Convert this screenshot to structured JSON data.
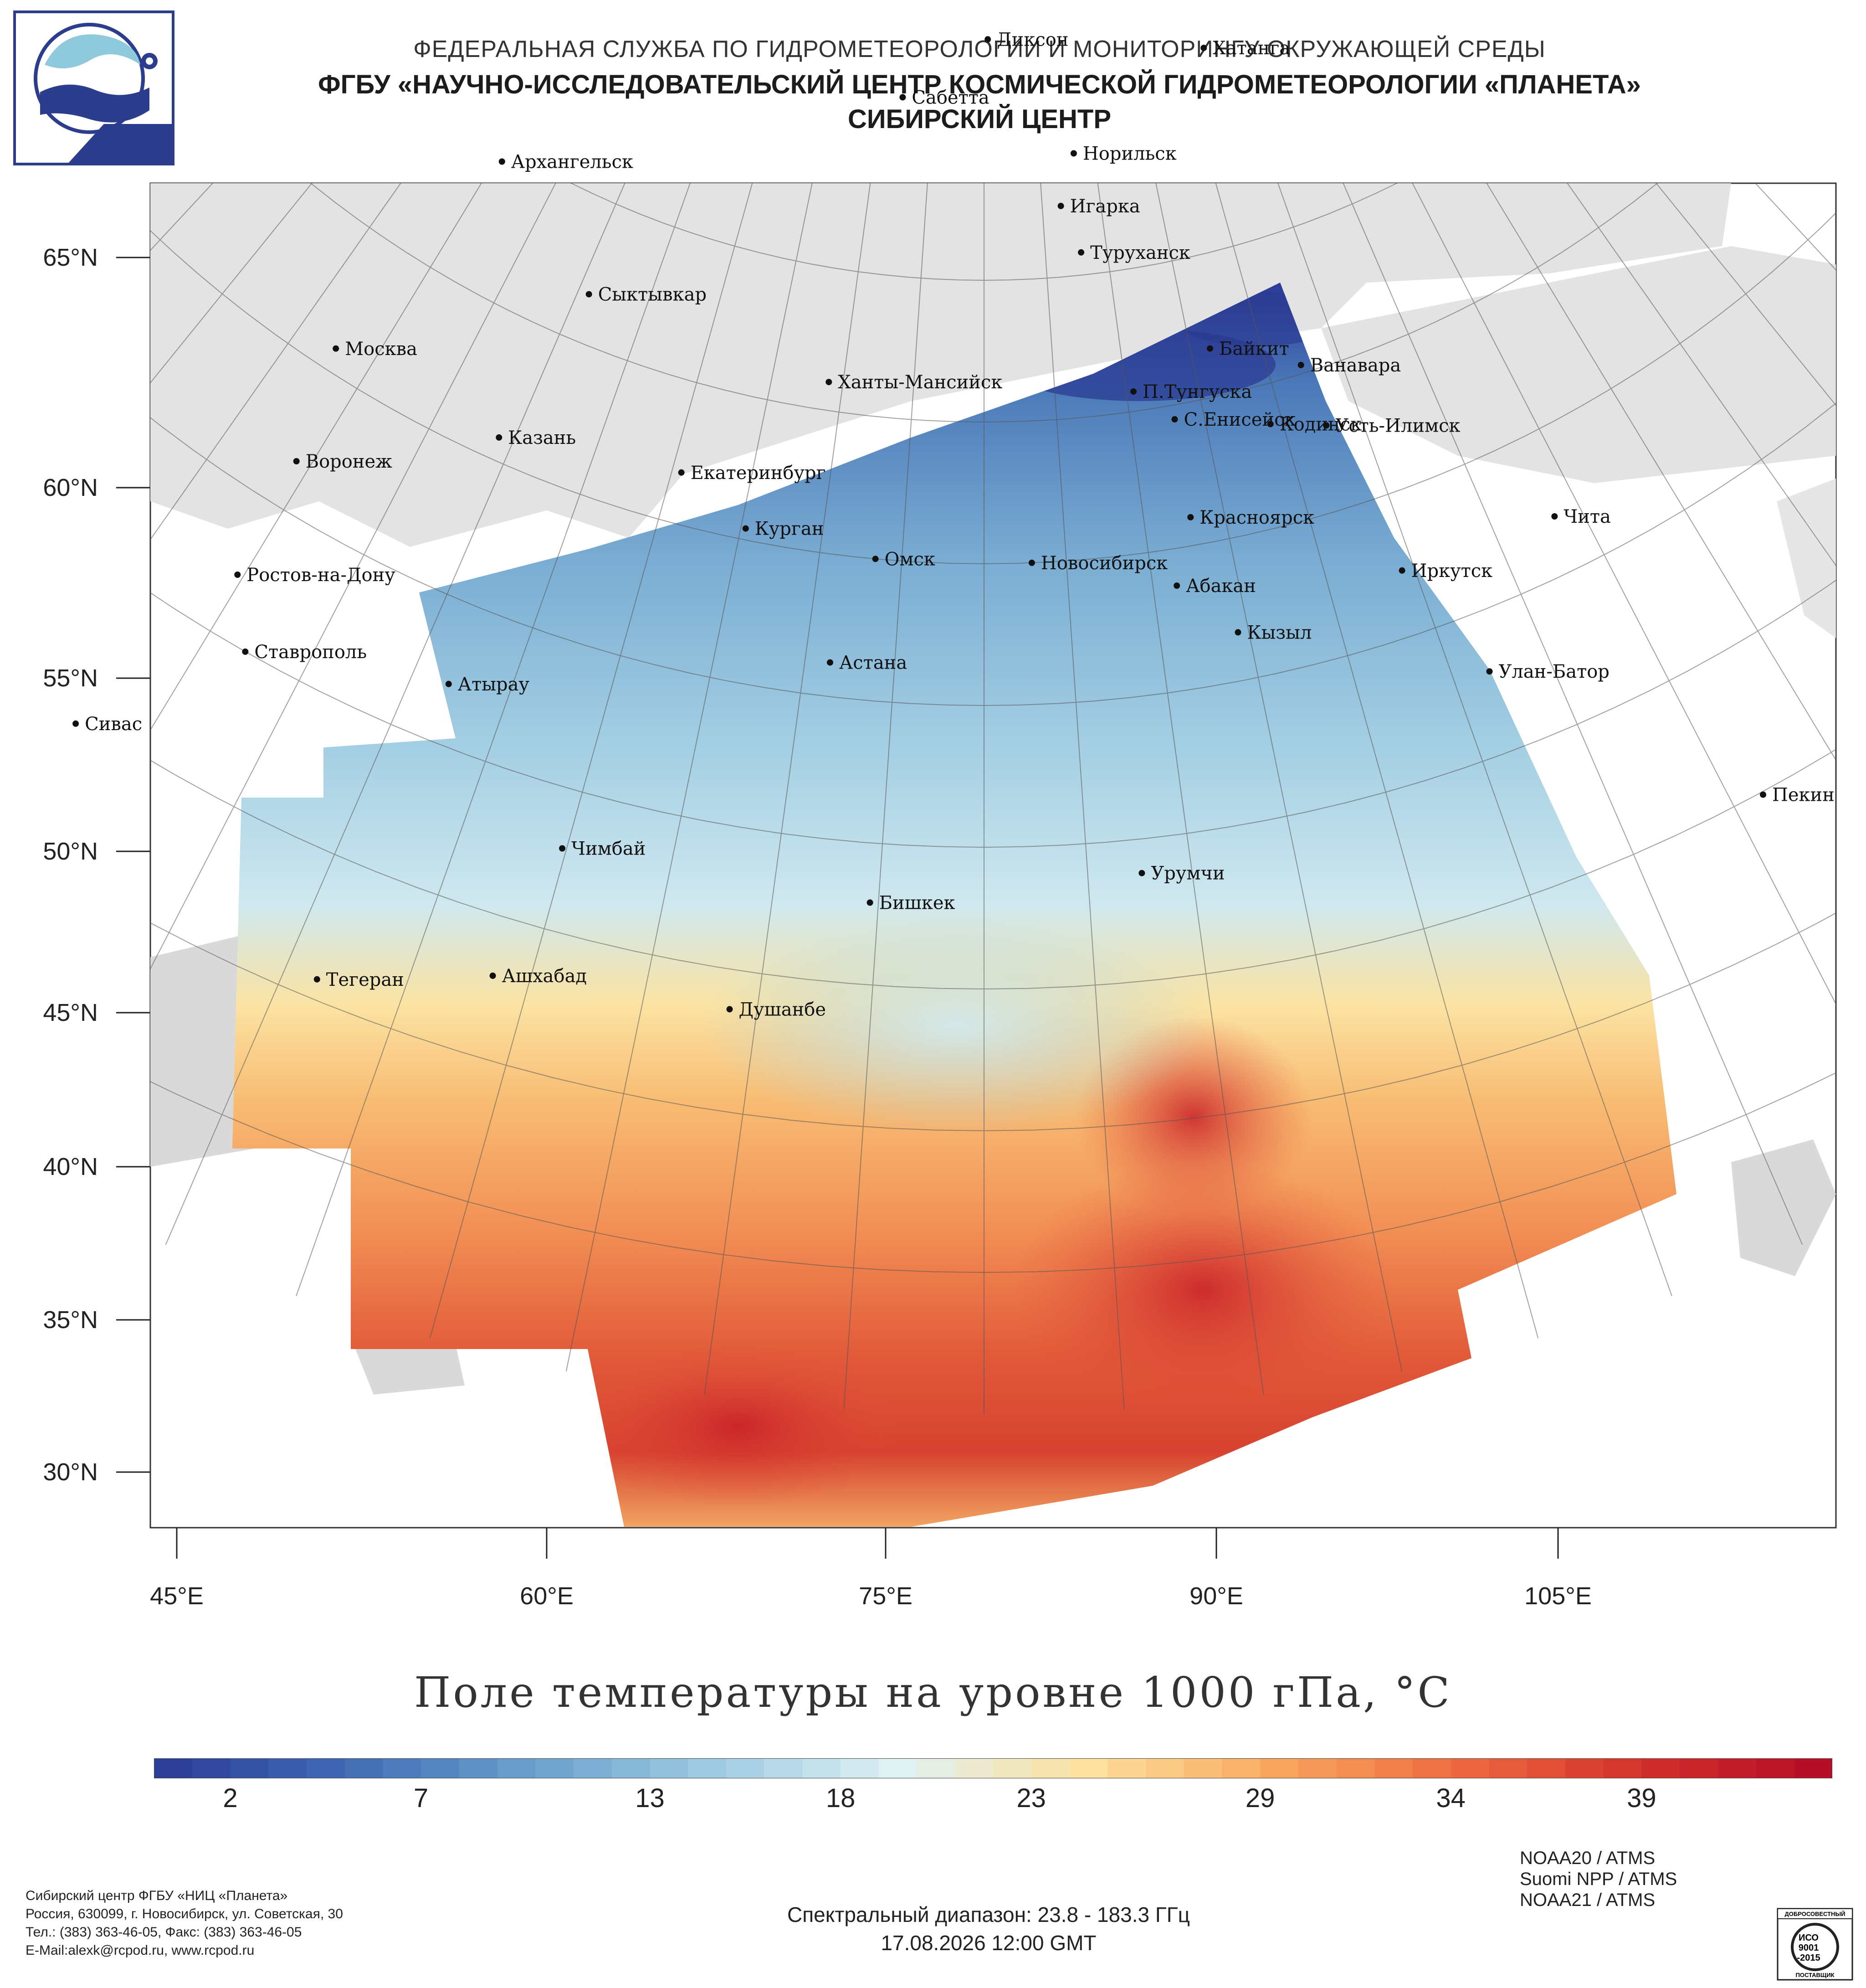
{
  "header": {
    "line1": "ФЕДЕРАЛЬНАЯ СЛУЖБА ПО ГИДРОМЕТЕОРОЛОГИИ И МОНИТОРИНГУ ОКРУЖАЮЩЕЙ СРЕДЫ",
    "line2": "ФГБУ «НАУЧНО-ИССЛЕДОВАТЕЛЬСКИЙ ЦЕНТР КОСМИЧЕСКОЙ ГИДРОМЕТЕОРОЛОГИИ «ПЛАНЕТА»",
    "line3": "СИБИРСКИЙ ЦЕНТР"
  },
  "map": {
    "lat_labels": [
      "65°N",
      "60°N",
      "55°N",
      "50°N",
      "45°N",
      "40°N",
      "35°N",
      "30°N"
    ],
    "lon_labels": [
      "45°E",
      "60°E",
      "75°E",
      "90°E",
      "105°E"
    ],
    "cities": [
      {
        "name": "Диксон",
        "lon": 80.4,
        "lat": 73.5
      },
      {
        "name": "Хатанга",
        "lon": 102.5,
        "lat": 72.0
      },
      {
        "name": "Сабетта",
        "lon": 72.0,
        "lat": 71.3
      },
      {
        "name": "Архангельск",
        "lon": 40.5,
        "lat": 64.5
      },
      {
        "name": "Норильск",
        "lon": 88.2,
        "lat": 69.3
      },
      {
        "name": "Игарка",
        "lon": 86.6,
        "lat": 67.5
      },
      {
        "name": "Туруханск",
        "lon": 87.9,
        "lat": 65.8
      },
      {
        "name": "Сыктывкар",
        "lon": 50.8,
        "lat": 61.7
      },
      {
        "name": "Байкит",
        "lon": 96.4,
        "lat": 61.7
      },
      {
        "name": "Москва",
        "lon": 37.6,
        "lat": 55.8
      },
      {
        "name": "Ханты-Мансийск",
        "lon": 69.0,
        "lat": 61.0
      },
      {
        "name": "П.Тунгуска",
        "lon": 90.5,
        "lat": 60.7
      },
      {
        "name": "Ванавара",
        "lon": 102.3,
        "lat": 60.3
      },
      {
        "name": "С.Енисейск",
        "lon": 93.0,
        "lat": 59.5
      },
      {
        "name": "Кодинск",
        "lon": 99.2,
        "lat": 58.6
      },
      {
        "name": "Усть-Илимск",
        "lon": 102.7,
        "lat": 58.0
      },
      {
        "name": "Казань",
        "lon": 49.1,
        "lat": 55.8
      },
      {
        "name": "Воронеж",
        "lon": 39.2,
        "lat": 51.7
      },
      {
        "name": "Екатеринбург",
        "lon": 60.6,
        "lat": 56.8
      },
      {
        "name": "Курган",
        "lon": 65.3,
        "lat": 55.4
      },
      {
        "name": "Красноярск",
        "lon": 92.9,
        "lat": 56.0
      },
      {
        "name": "Чита",
        "lon": 113.5,
        "lat": 52.0
      },
      {
        "name": "Омск",
        "lon": 73.4,
        "lat": 55.0
      },
      {
        "name": "Новосибирск",
        "lon": 82.9,
        "lat": 55.0
      },
      {
        "name": "Ростов-на-Дону",
        "lon": 39.7,
        "lat": 47.2
      },
      {
        "name": "Абакан",
        "lon": 91.4,
        "lat": 53.7
      },
      {
        "name": "Иркутск",
        "lon": 104.3,
        "lat": 52.3
      },
      {
        "name": "Кызыл",
        "lon": 94.4,
        "lat": 51.7
      },
      {
        "name": "Ставрополь",
        "lon": 42.0,
        "lat": 45.0
      },
      {
        "name": "Астана",
        "lon": 71.4,
        "lat": 51.2
      },
      {
        "name": "Улан-Батор",
        "lon": 106.9,
        "lat": 47.9
      },
      {
        "name": "Атырау",
        "lon": 51.9,
        "lat": 47.1
      },
      {
        "name": "Сивас",
        "lon": 37.0,
        "lat": 39.7
      },
      {
        "name": "Пекин",
        "lon": 116.4,
        "lat": 39.9
      },
      {
        "name": "Чимбай",
        "lon": 59.8,
        "lat": 42.9
      },
      {
        "name": "Урумчи",
        "lon": 87.6,
        "lat": 43.8
      },
      {
        "name": "Бишкек",
        "lon": 74.6,
        "lat": 42.9
      },
      {
        "name": "Ашхабад",
        "lon": 58.4,
        "lat": 37.9
      },
      {
        "name": "Тегеран",
        "lon": 51.4,
        "lat": 35.7
      },
      {
        "name": "Душанбе",
        "lon": 68.8,
        "lat": 38.6
      }
    ]
  },
  "title": "Поле температуры на уровне 1000 гПа, °C",
  "colorbar": {
    "min": 0,
    "max": 44,
    "ticks": [
      "2",
      "7",
      "13",
      "18",
      "23",
      "29",
      "34",
      "39"
    ],
    "colors": [
      "#2c3a97",
      "#4069b3",
      "#6a9fcc",
      "#9fcbe2",
      "#e0f1f3",
      "#fde2a0",
      "#f9a85f",
      "#ee6a40",
      "#d0302b",
      "#b30a28"
    ]
  },
  "footer": {
    "org": "Сибирский центр ФГБУ «НИЦ «Планета»",
    "address": "Россия, 630099, г. Новосибирск, ул. Советская, 30",
    "phone": "Тел.: (383) 363-46-05, Факс: (383) 363-46-05",
    "email": "E-Mail:alexk@rcpod.ru, www.rcpod.ru",
    "spectral": "Спектральный диапазон: 23.8 - 183.3 ГГц",
    "datetime": "17.08.2026 12:00 GMT",
    "satellites": [
      "NOAA20 / ATMS",
      "Suomi NPP / ATMS",
      "NOAA21 / ATMS"
    ],
    "iso_top": "ДОБРОСОВЕСТНЫЙ",
    "iso_mid1": "ИСО",
    "iso_mid2": "9001",
    "iso_mid3": "-2015",
    "iso_bottom": "ПОСТАВЩИК"
  }
}
